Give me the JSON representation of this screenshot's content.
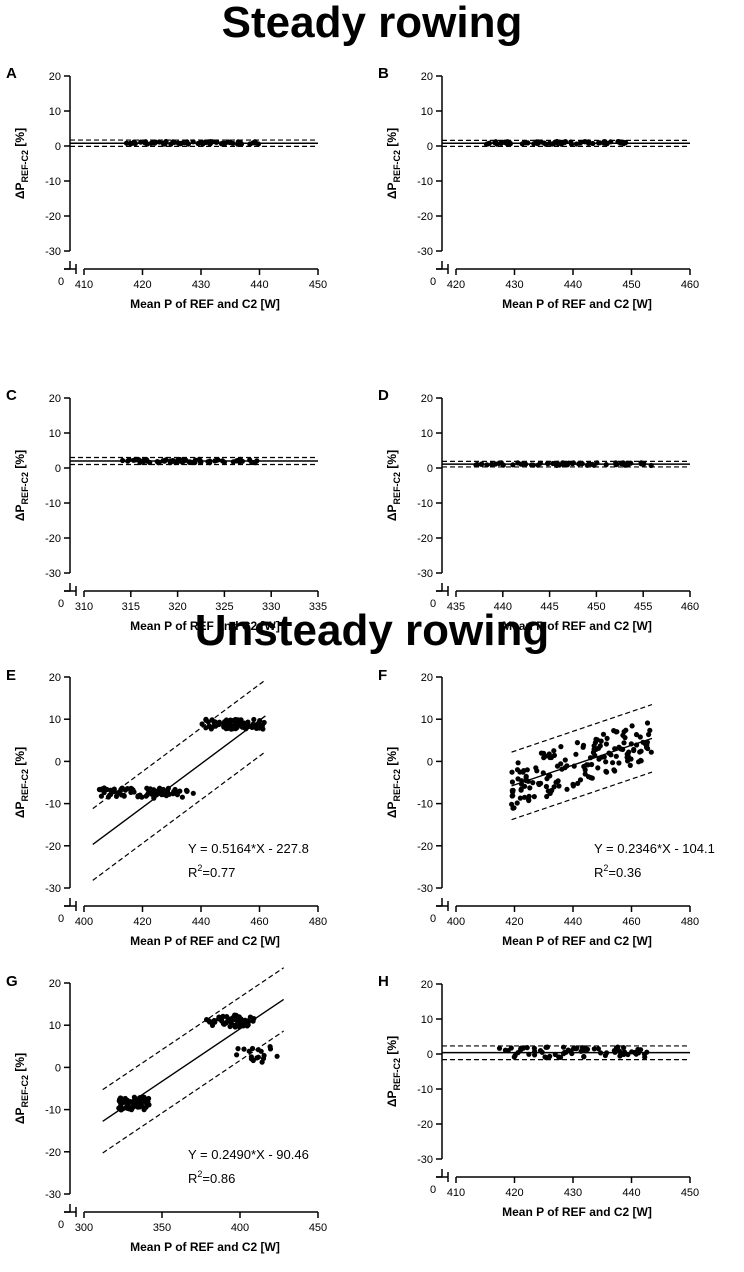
{
  "titles": {
    "steady": "Steady rowing",
    "unsteady": "Unsteady rowing"
  },
  "axis_labels": {
    "y_main": "ΔP",
    "y_sub": "REF-C2",
    "y_unit": " [%]",
    "x": "Mean P of REF and C2 [W]"
  },
  "chart_data": [
    {
      "panel": "A",
      "type": "scatter",
      "ylim": [
        -30,
        20
      ],
      "yticks": [
        20,
        10,
        0,
        -10,
        -20,
        -30
      ],
      "xlim": [
        410,
        450
      ],
      "xticks": [
        410,
        420,
        430,
        440,
        450
      ],
      "xlabel": "Mean P of REF and C2 [W]",
      "ylabel": "ΔPREF-C2 [%]",
      "x_range": [
        417,
        440
      ],
      "y_center": 0.9,
      "y_spread": 0.4,
      "lines": {
        "mean": 0.8,
        "upper": 1.7,
        "lower": -0.1
      }
    },
    {
      "panel": "B",
      "type": "scatter",
      "ylim": [
        -30,
        20
      ],
      "yticks": [
        20,
        10,
        0,
        -10,
        -20,
        -30
      ],
      "xlim": [
        420,
        460
      ],
      "xticks": [
        420,
        430,
        440,
        450,
        460
      ],
      "xlabel": "Mean P of REF and C2 [W]",
      "ylabel": "ΔPREF-C2 [%]",
      "x_range": [
        425,
        449
      ],
      "y_center": 0.9,
      "y_spread": 0.4,
      "lines": {
        "mean": 0.8,
        "upper": 1.6,
        "lower": -0.1
      }
    },
    {
      "panel": "C",
      "type": "scatter",
      "ylim": [
        -30,
        20
      ],
      "yticks": [
        20,
        10,
        0,
        -10,
        -20,
        -30
      ],
      "xlim": [
        310,
        335
      ],
      "xticks": [
        310,
        315,
        320,
        325,
        330,
        335
      ],
      "xlabel": "Mean P of REF and C2 [W]",
      "ylabel": "ΔPREF-C2 [%]",
      "x_range": [
        314,
        328.5
      ],
      "y_center": 2.0,
      "y_spread": 0.5,
      "lines": {
        "mean": 2.0,
        "upper": 3.0,
        "lower": 1.0
      }
    },
    {
      "panel": "D",
      "type": "scatter",
      "ylim": [
        -30,
        20
      ],
      "yticks": [
        20,
        10,
        0,
        -10,
        -20,
        -30
      ],
      "xlim": [
        435,
        460
      ],
      "xticks": [
        435,
        440,
        445,
        450,
        455,
        460
      ],
      "xlabel": "Mean P of REF and C2 [W]",
      "ylabel": "ΔPREF-C2 [%]",
      "x_range": [
        437,
        456
      ],
      "y_center": 1.1,
      "y_spread": 0.4,
      "lines": {
        "mean": 1.1,
        "upper": 1.9,
        "lower": 0.3
      }
    },
    {
      "panel": "E",
      "type": "scatter",
      "ylim": [
        -30,
        20
      ],
      "yticks": [
        20,
        10,
        0,
        -10,
        -20,
        -30
      ],
      "xlim": [
        400,
        480
      ],
      "xticks": [
        400,
        420,
        440,
        460,
        480
      ],
      "xlabel": "Mean P of REF and C2 [W]",
      "ylabel": "ΔPREF-C2 [%]",
      "clusters": [
        {
          "x_range": [
            405,
            438
          ],
          "y_center": -7.5,
          "y_spread": 1.2,
          "n": 70
        },
        {
          "x_range": [
            440,
            462
          ],
          "y_center": 8.8,
          "y_spread": 1.2,
          "n": 80
        }
      ],
      "regression": {
        "slope": 0.5164,
        "intercept": -227.8,
        "x_range": [
          403,
          462
        ],
        "band": 8.5
      },
      "equation": "Y = 0.5164*X - 227.8",
      "r2_label": "R",
      "r2_sup": "2",
      "r2_value": "=0.77"
    },
    {
      "panel": "F",
      "type": "scatter",
      "ylim": [
        -30,
        20
      ],
      "yticks": [
        20,
        10,
        0,
        -10,
        -20,
        -30
      ],
      "xlim": [
        400,
        480
      ],
      "xticks": [
        400,
        420,
        440,
        460,
        480
      ],
      "xlabel": "Mean P of REF and C2 [W]",
      "ylabel": "ΔPREF-C2 [%]",
      "clusters": [
        {
          "x_range": [
            419,
            438
          ],
          "y_center": -1.5,
          "y_spread": 5.5,
          "n": 70
        },
        {
          "x_range": [
            440,
            467
          ],
          "y_center": 3.5,
          "y_spread": 5.0,
          "n": 90
        }
      ],
      "regression": {
        "slope": 0.2346,
        "intercept": -104.1,
        "x_range": [
          419,
          467
        ],
        "band": 8.0
      },
      "equation": "Y = 0.2346*X - 104.1",
      "r2_label": "R",
      "r2_sup": "2",
      "r2_value": "=0.36"
    },
    {
      "panel": "G",
      "type": "scatter",
      "ylim": [
        -30,
        20
      ],
      "yticks": [
        20,
        10,
        0,
        -10,
        -20,
        -30
      ],
      "xlim": [
        300,
        450
      ],
      "xticks": [
        300,
        350,
        400,
        450
      ],
      "xlabel": "Mean P of REF and C2 [W]",
      "ylabel": "ΔPREF-C2 [%]",
      "clusters": [
        {
          "x_range": [
            322,
            342
          ],
          "y_center": -8.5,
          "y_spread": 1.6,
          "n": 60
        },
        {
          "x_range": [
            378,
            410
          ],
          "y_center": 11.0,
          "y_spread": 1.5,
          "n": 50
        },
        {
          "x_range": [
            395,
            428
          ],
          "y_center": 3.0,
          "y_spread": 2.0,
          "n": 18
        }
      ],
      "regression": {
        "slope": 0.249,
        "intercept": -90.46,
        "x_range": [
          312,
          428
        ],
        "band": 7.5
      },
      "equation": "Y = 0.2490*X - 90.46",
      "r2_label": "R",
      "r2_sup": "2",
      "r2_value": "=0.86"
    },
    {
      "panel": "H",
      "type": "scatter",
      "ylim": [
        -30,
        20
      ],
      "yticks": [
        20,
        10,
        0,
        -10,
        -20,
        -30
      ],
      "xlim": [
        410,
        450
      ],
      "xticks": [
        410,
        420,
        430,
        440,
        450
      ],
      "xlabel": "Mean P of REF and C2 [W]",
      "ylabel": "ΔPREF-C2 [%]",
      "x_range": [
        417,
        443
      ],
      "y_center": 0.5,
      "y_spread": 1.6,
      "lines": {
        "mean": 0.4,
        "upper": 2.3,
        "lower": -1.6
      }
    }
  ]
}
